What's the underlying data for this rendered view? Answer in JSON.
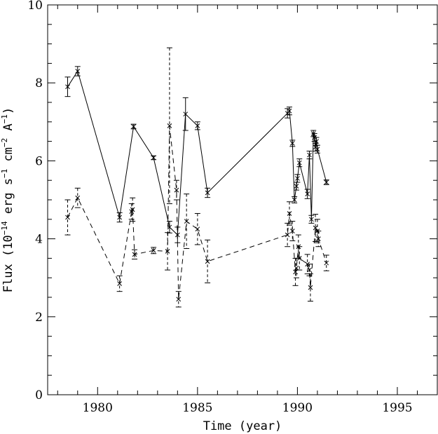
{
  "chart_data": {
    "type": "line",
    "xlabel": "Time (year)",
    "ylabel": {
      "prefix": "Flux (10",
      "exp1": "−14",
      "mid1": " erg s",
      "exp2": "−1",
      "mid2": " cm",
      "exp3": "−2",
      "mid3": " A",
      "exp4": "−1",
      "suffix": ")"
    },
    "xlim": [
      1977.5,
      1997
    ],
    "ylim": [
      0,
      10
    ],
    "x_ticks": [
      1980,
      1985,
      1990,
      1995
    ],
    "y_ticks": [
      0,
      2,
      4,
      6,
      8,
      10
    ],
    "x_tick_labels": [
      "1980",
      "1985",
      "1990",
      "1995"
    ],
    "y_tick_labels": [
      "0",
      "2",
      "4",
      "6",
      "8",
      "10"
    ],
    "grid": false,
    "series": [
      {
        "style": "solid",
        "color": "#000000",
        "marker": "x",
        "points": [
          [
            1978.5,
            7.9,
            0.25
          ],
          [
            1979.0,
            8.3,
            0.12
          ],
          [
            1981.1,
            4.55,
            0.12
          ],
          [
            1981.8,
            6.88,
            0.06
          ],
          [
            1982.8,
            6.08,
            0.05
          ],
          [
            1983.6,
            4.3,
            0.15
          ],
          [
            1984.0,
            4.1,
            0.2
          ],
          [
            1984.4,
            7.2,
            0.42
          ],
          [
            1985.0,
            6.9,
            0.1
          ],
          [
            1985.5,
            5.18,
            0.12
          ],
          [
            1989.5,
            7.22,
            0.12
          ],
          [
            1989.6,
            7.28,
            0.1
          ],
          [
            1989.75,
            6.45,
            0.08
          ],
          [
            1989.85,
            5.0,
            0.08
          ],
          [
            1989.95,
            5.35,
            0.1
          ],
          [
            1990.0,
            5.55,
            0.1
          ],
          [
            1990.1,
            5.95,
            0.1
          ],
          [
            1990.5,
            5.15,
            0.12
          ],
          [
            1990.6,
            6.15,
            0.1
          ],
          [
            1990.7,
            4.5,
            0.1
          ],
          [
            1990.8,
            6.7,
            0.08
          ],
          [
            1990.85,
            6.6,
            0.1
          ],
          [
            1990.9,
            6.35,
            0.1
          ],
          [
            1990.95,
            6.5,
            0.1
          ],
          [
            1991.0,
            6.3,
            0.1
          ],
          [
            1991.45,
            5.45,
            0.06
          ]
        ]
      },
      {
        "style": "dashed",
        "color": "#000000",
        "marker": "x",
        "points": [
          [
            1978.5,
            4.55,
            0.45
          ],
          [
            1979.0,
            5.05,
            0.25
          ],
          [
            1981.1,
            2.85,
            0.2
          ],
          [
            1981.7,
            4.7,
            0.2
          ],
          [
            1981.75,
            4.75,
            0.3
          ],
          [
            1981.85,
            3.6,
            0.12
          ],
          [
            1982.8,
            3.7,
            0.08
          ],
          [
            1983.5,
            3.68,
            0.48
          ],
          [
            1983.6,
            6.9,
            2.0
          ],
          [
            1983.95,
            5.25,
            0.25
          ],
          [
            1984.05,
            2.45,
            0.2
          ],
          [
            1984.45,
            4.45,
            0.7
          ],
          [
            1985.0,
            4.25,
            0.4
          ],
          [
            1985.5,
            3.42,
            0.55
          ],
          [
            1989.5,
            4.1,
            0.3
          ],
          [
            1989.6,
            4.65,
            0.3
          ],
          [
            1989.75,
            4.2,
            0.25
          ],
          [
            1989.9,
            3.15,
            0.35
          ],
          [
            1989.95,
            3.25,
            0.25
          ],
          [
            1990.05,
            3.8,
            0.3
          ],
          [
            1990.1,
            3.5,
            0.3
          ],
          [
            1990.5,
            3.35,
            0.25
          ],
          [
            1990.6,
            3.2,
            0.15
          ],
          [
            1990.65,
            2.75,
            0.35
          ],
          [
            1990.9,
            4.28,
            0.35
          ],
          [
            1991.0,
            4.2,
            0.3
          ],
          [
            1991.05,
            4.0,
            0.2
          ],
          [
            1991.45,
            3.38,
            0.2
          ]
        ]
      }
    ]
  }
}
